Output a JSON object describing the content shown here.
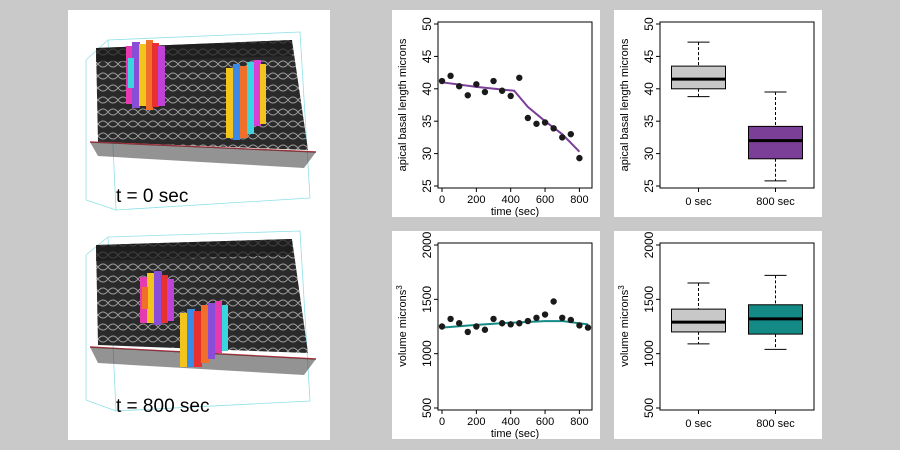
{
  "colors": {
    "background": "#c9c9c9",
    "panel": "#ffffff",
    "purple": "#7b3f98",
    "teal": "#138a85",
    "gray_box": "#c8c8c8",
    "points": "#1a1a1a"
  },
  "left": {
    "top_label": "t = 0 sec",
    "bottom_label": "t = 800 sec"
  },
  "chart_data": [
    {
      "type": "scatter",
      "ylabel": "apical basal length microns",
      "xlabel": "time (sec)",
      "xlim": [
        0,
        850
      ],
      "ylim": [
        25,
        50
      ],
      "xticks": [
        0,
        200,
        400,
        600,
        800
      ],
      "yticks": [
        25,
        30,
        35,
        40,
        45,
        50
      ],
      "points": [
        [
          0,
          41.2
        ],
        [
          50,
          42.0
        ],
        [
          100,
          40.4
        ],
        [
          150,
          39.0
        ],
        [
          200,
          40.7
        ],
        [
          250,
          39.5
        ],
        [
          300,
          41.2
        ],
        [
          350,
          39.7
        ],
        [
          400,
          38.9
        ],
        [
          450,
          41.7
        ],
        [
          500,
          35.5
        ],
        [
          550,
          34.6
        ],
        [
          600,
          34.8
        ],
        [
          650,
          33.9
        ],
        [
          700,
          32.5
        ],
        [
          750,
          33.0
        ],
        [
          800,
          29.3
        ]
      ],
      "fit": {
        "color": "purple",
        "points": [
          [
            0,
            41.0
          ],
          [
            200,
            40.3
          ],
          [
            420,
            39.7
          ],
          [
            500,
            37.2
          ],
          [
            600,
            35.0
          ],
          [
            700,
            33.0
          ],
          [
            800,
            30.3
          ]
        ]
      },
      "grid": false
    },
    {
      "type": "box",
      "ylabel": "apical basal length microns",
      "categories": [
        "0 sec",
        "800 sec"
      ],
      "ylim": [
        25,
        50
      ],
      "yticks": [
        25,
        30,
        35,
        40,
        45,
        50
      ],
      "boxes": [
        {
          "whisker_low": 38.8,
          "q1": 40.0,
          "median": 41.5,
          "q3": 43.5,
          "whisker_high": 47.2,
          "color": "gray_box"
        },
        {
          "whisker_low": 25.8,
          "q1": 29.2,
          "median": 32.0,
          "q3": 34.2,
          "whisker_high": 39.5,
          "color": "purple"
        }
      ]
    },
    {
      "type": "scatter",
      "ylabel": "volume microns",
      "ylabel_sup": "3",
      "xlabel": "time (sec)",
      "xlim": [
        0,
        850
      ],
      "ylim": [
        500,
        2000
      ],
      "xticks": [
        0,
        200,
        400,
        600,
        800
      ],
      "yticks": [
        500,
        1000,
        1500,
        2000
      ],
      "points": [
        [
          0,
          1250
        ],
        [
          50,
          1320
        ],
        [
          100,
          1280
        ],
        [
          150,
          1200
        ],
        [
          200,
          1250
        ],
        [
          250,
          1220
        ],
        [
          300,
          1320
        ],
        [
          350,
          1280
        ],
        [
          400,
          1270
        ],
        [
          450,
          1280
        ],
        [
          500,
          1300
        ],
        [
          550,
          1330
        ],
        [
          600,
          1360
        ],
        [
          650,
          1480
        ],
        [
          700,
          1330
        ],
        [
          750,
          1310
        ],
        [
          800,
          1260
        ],
        [
          850,
          1240
        ]
      ],
      "fit": {
        "color": "teal",
        "points": [
          [
            0,
            1240
          ],
          [
            200,
            1265
          ],
          [
            400,
            1285
          ],
          [
            600,
            1300
          ],
          [
            700,
            1300
          ],
          [
            850,
            1270
          ]
        ]
      },
      "grid": false
    },
    {
      "type": "box",
      "ylabel": "volume microns",
      "ylabel_sup": "3",
      "categories": [
        "0 sec",
        "800 sec"
      ],
      "ylim": [
        500,
        2000
      ],
      "yticks": [
        500,
        1000,
        1500,
        2000
      ],
      "boxes": [
        {
          "whisker_low": 1090,
          "q1": 1200,
          "median": 1290,
          "q3": 1410,
          "whisker_high": 1650,
          "color": "gray_box"
        },
        {
          "whisker_low": 1040,
          "q1": 1180,
          "median": 1320,
          "q3": 1450,
          "whisker_high": 1720,
          "color": "teal"
        }
      ]
    }
  ]
}
